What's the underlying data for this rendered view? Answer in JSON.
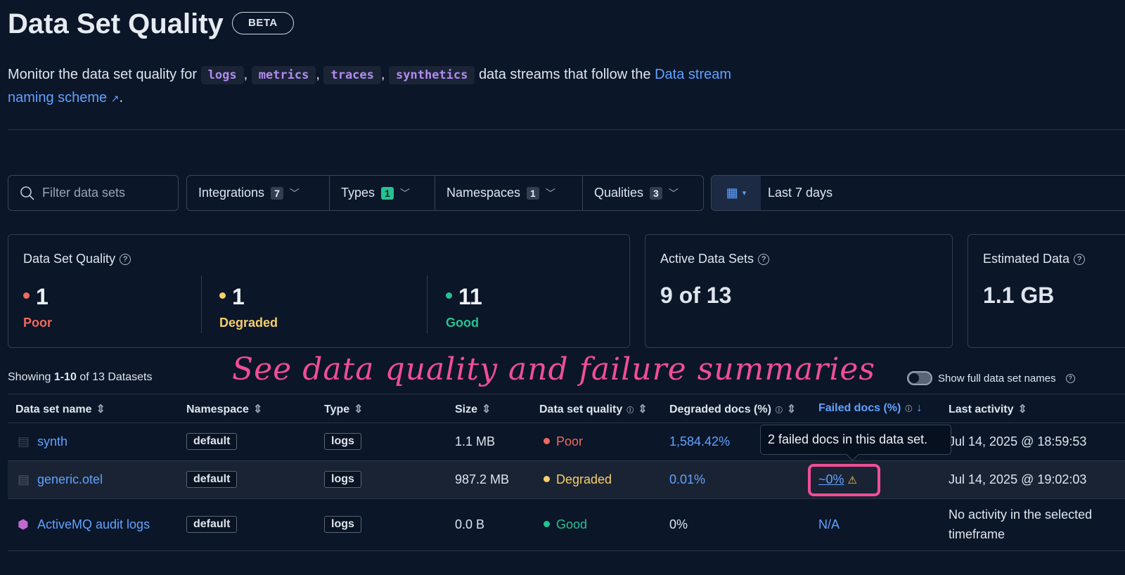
{
  "header": {
    "title": "Data Set Quality",
    "badge": "BETA",
    "desc_prefix": "Monitor the data set quality for",
    "types": [
      "logs",
      "metrics",
      "traces",
      "synthetics"
    ],
    "desc_middle": "data streams that follow the",
    "link_text1": "Data stream",
    "link_text2": "naming scheme"
  },
  "filters": {
    "search_placeholder": "Filter data sets",
    "items": [
      {
        "label": "Integrations",
        "count": "7"
      },
      {
        "label": "Types",
        "count": "1"
      },
      {
        "label": "Namespaces",
        "count": "1"
      },
      {
        "label": "Qualities",
        "count": "3"
      }
    ],
    "date_range": "Last 7 days"
  },
  "summary": {
    "quality_title": "Data Set Quality",
    "stats": [
      {
        "value": "1",
        "label": "Poor",
        "color": "#f0695e"
      },
      {
        "value": "1",
        "label": "Degraded",
        "color": "#f5cf6b"
      },
      {
        "value": "11",
        "label": "Good",
        "color": "#24c292"
      }
    ],
    "active_title": "Active Data Sets",
    "active_value": "9 of 13",
    "estimated_title": "Estimated Data",
    "estimated_value": "1.1 GB"
  },
  "annotation": "See data quality and failure summaries",
  "table": {
    "showing_prefix": "Showing",
    "showing_range": "1-10",
    "showing_suffix": "of 13 Datasets",
    "toggle_label": "Show full data set names",
    "columns": [
      "Data set name",
      "Namespace",
      "Type",
      "Size",
      "Data set quality",
      "Degraded docs (%)",
      "Failed docs (%)",
      "Last activity"
    ],
    "rows": [
      {
        "name": "synth",
        "namespace": "default",
        "type": "logs",
        "size": "1.1 MB",
        "quality": "Poor",
        "quality_color": "#f0695e",
        "degraded": "1,584.42%",
        "failed": "",
        "last": "Jul 14, 2025 @ 18:59:53"
      },
      {
        "name": "generic.otel",
        "namespace": "default",
        "type": "logs",
        "size": "987.2 MB",
        "quality": "Degraded",
        "quality_color": "#f5cf6b",
        "degraded": "0.01%",
        "failed": "~0%",
        "last": "Jul 14, 2025 @ 19:02:03"
      },
      {
        "name": "ActiveMQ audit logs",
        "namespace": "default",
        "type": "logs",
        "size": "0.0 B",
        "quality": "Good",
        "quality_color": "#24c292",
        "degraded": "0%",
        "failed": "N/A",
        "last": "No activity in the selected",
        "last2": "timeframe"
      }
    ],
    "tooltip": "2 failed docs in this data set."
  }
}
